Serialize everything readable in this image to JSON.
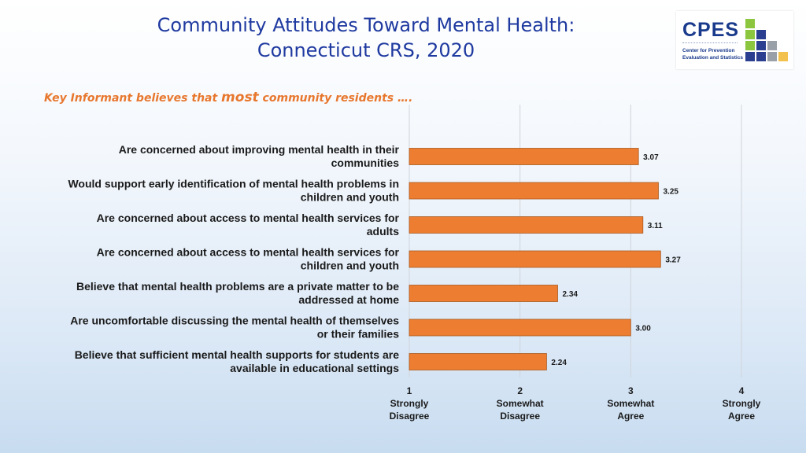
{
  "header": {
    "title_line1": "Community Attitudes Toward Mental Health:",
    "title_line2": "Connecticut CRS, 2020",
    "subtitle_before": "Key Informant believes that ",
    "subtitle_emph": "most",
    "subtitle_after": " community residents …."
  },
  "logo": {
    "abbr": "CPES",
    "line1": "Center for Prevention",
    "line2": "Evaluation and Statistics",
    "colors": [
      "#2a3f8f",
      "#8cc63f",
      "#9aa0a8",
      "#f2c14e"
    ]
  },
  "colors": {
    "bar": "#ed7d31",
    "bar_border": "#a85a20",
    "label": "#1a1a1a",
    "gridline": "#d0d4da"
  },
  "chart_data": {
    "type": "bar",
    "orientation": "horizontal",
    "categories": [
      "Are concerned about improving mental health in their communities",
      "Would support early identification of mental health problems in children and youth",
      "Are concerned about access to mental health services for adults",
      "Are concerned about access to mental health services for children and youth",
      "Believe that mental health problems are a private matter to be addressed at home",
      "Are uncomfortable discussing the mental health of themselves or their families",
      "Believe that sufficient mental health supports for students are available in educational settings"
    ],
    "category_lines": [
      [
        "Are concerned about improving mental health in their",
        "communities"
      ],
      [
        "Would support early identification of mental health problems in",
        "children and youth"
      ],
      [
        "Are concerned about access to mental health services for",
        "adults"
      ],
      [
        "Are concerned about access to mental health services for",
        "children and youth"
      ],
      [
        "Believe that mental health problems are a private matter to be",
        "addressed at home"
      ],
      [
        "Are uncomfortable discussing the mental health of themselves",
        "or their families"
      ],
      [
        "Believe that sufficient mental health supports for students are",
        "available in educational settings"
      ]
    ],
    "values": [
      3.07,
      3.25,
      3.11,
      3.27,
      2.34,
      3.0,
      2.24
    ],
    "value_labels": [
      "3.07",
      "3.25",
      "3.11",
      "3.27",
      "2.34",
      "3.00",
      "2.24"
    ],
    "xlim": [
      1,
      4
    ],
    "xticks": [
      {
        "value": 1,
        "number": "1",
        "line1": "Strongly",
        "line2": "Disagree"
      },
      {
        "value": 2,
        "number": "2",
        "line1": "Somewhat",
        "line2": "Disagree"
      },
      {
        "value": 3,
        "number": "3",
        "line1": "Somewhat",
        "line2": "Agree"
      },
      {
        "value": 4,
        "number": "4",
        "line1": "Strongly",
        "line2": "Agree"
      }
    ],
    "grid": true,
    "legend": "none"
  }
}
